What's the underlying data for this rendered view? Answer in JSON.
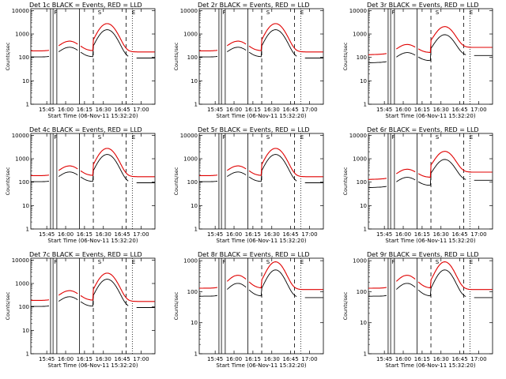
{
  "chart_data": [
    {
      "type": "line",
      "title": "Det 1c BLACK = Events, RED = LLD",
      "xlabel": "Start Time (06-Nov-11 15:32:20)",
      "ylabel": "Counts/sec",
      "variant": 1,
      "series": [
        {
          "name": "BLACK = Events",
          "color": "#000000"
        },
        {
          "name": "RED = LLD",
          "color": "#e00000"
        }
      ],
      "x_tick_labels": [
        "15:45",
        "16:00",
        "16:15",
        "16:30",
        "16:45",
        "17:00"
      ],
      "y_tick_labels": [
        "1",
        "10",
        "100",
        "1000",
        "10000"
      ],
      "ylim": [
        1,
        12000
      ],
      "log_y": true,
      "markers": [
        "F",
        "S",
        "E"
      ]
    },
    {
      "type": "line",
      "title": "Det 2r BLACK = Events, RED = LLD",
      "xlabel": "Start Time (06-Nov-11 15:32:20)",
      "ylabel": "Counts/sec",
      "variant": 1,
      "series": [
        {
          "name": "BLACK = Events",
          "color": "#000000"
        },
        {
          "name": "RED = LLD",
          "color": "#e00000"
        }
      ],
      "x_tick_labels": [
        "15:45",
        "16:00",
        "16:15",
        "16:30",
        "16:45",
        "17:00"
      ],
      "y_tick_labels": [
        "1",
        "10",
        "100",
        "1000",
        "10000"
      ],
      "ylim": [
        1,
        12000
      ],
      "log_y": true,
      "markers": [
        "F",
        "S",
        "E"
      ]
    },
    {
      "type": "line",
      "title": "Det 3r BLACK = Events, RED = LLD",
      "xlabel": "Start Time (06-Nov-11 15:32:20)",
      "ylabel": "Counts/sec",
      "variant": 2,
      "series": [
        {
          "name": "BLACK = Events",
          "color": "#000000"
        },
        {
          "name": "RED = LLD",
          "color": "#e00000"
        }
      ],
      "x_tick_labels": [
        "15:45",
        "16:00",
        "16:15",
        "16:30",
        "16:45",
        "17:00"
      ],
      "y_tick_labels": [
        "1",
        "10",
        "100",
        "1000",
        "10000"
      ],
      "ylim": [
        1,
        12000
      ],
      "log_y": true,
      "markers": [
        "F",
        "S",
        "E"
      ]
    },
    {
      "type": "line",
      "title": "Det 4c BLACK = Events, RED = LLD",
      "xlabel": "Start Time (06-Nov-11 15:32:20)",
      "ylabel": "Counts/sec",
      "variant": 1,
      "series": [
        {
          "name": "BLACK = Events",
          "color": "#000000"
        },
        {
          "name": "RED = LLD",
          "color": "#e00000"
        }
      ],
      "x_tick_labels": [
        "15:45",
        "16:00",
        "16:15",
        "16:30",
        "16:45",
        "17:00"
      ],
      "y_tick_labels": [
        "1",
        "10",
        "100",
        "1000",
        "10000"
      ],
      "ylim": [
        1,
        12000
      ],
      "log_y": true,
      "markers": [
        "F",
        "S",
        "E"
      ]
    },
    {
      "type": "line",
      "title": "Det 5r BLACK = Events, RED = LLD",
      "xlabel": "Start Time (06-Nov-11 15:32:20)",
      "ylabel": "Counts/sec",
      "variant": 1,
      "series": [
        {
          "name": "BLACK = Events",
          "color": "#000000"
        },
        {
          "name": "RED = LLD",
          "color": "#e00000"
        }
      ],
      "x_tick_labels": [
        "15:45",
        "16:00",
        "16:15",
        "16:30",
        "16:45",
        "17:00"
      ],
      "y_tick_labels": [
        "1",
        "10",
        "100",
        "1000",
        "10000"
      ],
      "ylim": [
        1,
        12000
      ],
      "log_y": true,
      "markers": [
        "F",
        "S",
        "E"
      ]
    },
    {
      "type": "line",
      "title": "Det 6r BLACK = Events, RED = LLD",
      "xlabel": "Start Time (06-Nov-11 15:32:20)",
      "ylabel": "Counts/sec",
      "variant": 2,
      "series": [
        {
          "name": "BLACK = Events",
          "color": "#000000"
        },
        {
          "name": "RED = LLD",
          "color": "#e00000"
        }
      ],
      "x_tick_labels": [
        "15:45",
        "16:00",
        "16:15",
        "16:30",
        "16:45",
        "17:00"
      ],
      "y_tick_labels": [
        "1",
        "10",
        "100",
        "1000",
        "10000"
      ],
      "ylim": [
        1,
        12000
      ],
      "log_y": true,
      "markers": [
        "F",
        "S",
        "E"
      ]
    },
    {
      "type": "line",
      "title": "Det 7c BLACK = Events, RED = LLD",
      "xlabel": "Start Time (06-Nov-11 15:32:20)",
      "ylabel": "Counts/sec",
      "variant": 1,
      "series": [
        {
          "name": "BLACK = Events",
          "color": "#000000"
        },
        {
          "name": "RED = LLD",
          "color": "#e00000"
        }
      ],
      "x_tick_labels": [
        "15:45",
        "16:00",
        "16:15",
        "16:30",
        "16:45",
        "17:00"
      ],
      "y_tick_labels": [
        "1",
        "10",
        "100",
        "1000",
        "10000"
      ],
      "ylim": [
        1,
        12000
      ],
      "log_y": true,
      "markers": [
        "F",
        "S",
        "E"
      ]
    },
    {
      "type": "line",
      "title": "Det 8r BLACK = Events, RED = LLD",
      "xlabel": "Start Time (06-Nov-11 15:32:20)",
      "ylabel": "Counts/sec",
      "variant": 3,
      "series": [
        {
          "name": "BLACK = Events",
          "color": "#000000"
        },
        {
          "name": "RED = LLD",
          "color": "#e00000"
        }
      ],
      "x_tick_labels": [
        "15:45",
        "16:00",
        "16:15",
        "16:30",
        "16:45",
        "17:00"
      ],
      "y_tick_labels": [
        "1",
        "10",
        "100",
        "1000"
      ],
      "ylim": [
        1,
        1200
      ],
      "log_y": true,
      "markers": [
        "F",
        "S",
        "E"
      ]
    },
    {
      "type": "line",
      "title": "Det 9r BLACK = Events, RED = LLD",
      "xlabel": "Start Time (06-Nov-11 15:32:20)",
      "ylabel": "Counts/sec",
      "variant": 3,
      "series": [
        {
          "name": "BLACK = Events",
          "color": "#000000"
        },
        {
          "name": "RED = LLD",
          "color": "#e00000"
        }
      ],
      "x_tick_labels": [
        "15:45",
        "16:00",
        "16:15",
        "16:30",
        "16:45",
        "17:00"
      ],
      "y_tick_labels": [
        "1",
        "10",
        "100",
        "1000"
      ],
      "ylim": [
        1,
        1200
      ],
      "log_y": true,
      "markers": [
        "F",
        "S",
        "E"
      ]
    }
  ]
}
